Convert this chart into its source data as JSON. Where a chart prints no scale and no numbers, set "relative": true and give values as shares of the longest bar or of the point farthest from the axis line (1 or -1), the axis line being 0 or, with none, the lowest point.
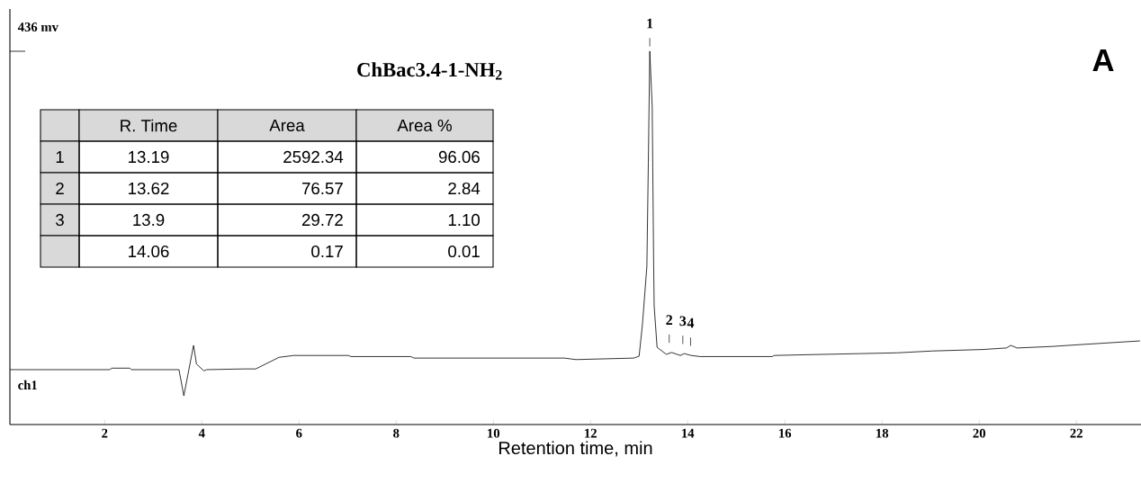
{
  "chart_data": {
    "type": "line",
    "title": "ChBac3.4-1-NH$_{2}$",
    "xlabel": "Retention time, min",
    "relative": true,
    "xlim": [
      0.05,
      23.33
    ],
    "xticks": [
      2,
      4,
      6,
      8,
      10,
      12,
      14,
      16,
      18,
      20,
      22
    ],
    "grid": false,
    "marker": "none",
    "line_style": "solid",
    "series": [
      {
        "color": "#000000",
        "x": [
          0.05,
          2.1,
          2.15,
          2.52,
          2.55,
          3.53,
          3.63,
          3.83,
          3.89,
          4.04,
          4.1,
          4.89,
          5.11,
          5.59,
          5.89,
          7.02,
          7.07,
          8.3,
          8.37,
          11.46,
          11.7,
          12.89,
          13.0,
          13.07,
          13.16,
          13.19,
          13.22,
          13.27,
          13.3,
          13.31,
          13.37,
          13.56,
          13.67,
          13.85,
          13.93,
          14.07,
          14.26,
          15.74,
          15.78,
          16.44,
          17.56,
          18.3,
          19.04,
          20.07,
          20.56,
          20.65,
          20.78,
          21.48,
          22.07,
          23.31
        ],
        "values": [
          0.147,
          0.147,
          0.151,
          0.151,
          0.147,
          0.147,
          0.077,
          0.212,
          0.162,
          0.144,
          0.147,
          0.149,
          0.149,
          0.18,
          0.185,
          0.185,
          0.182,
          0.182,
          0.178,
          0.178,
          0.174,
          0.178,
          0.183,
          0.27,
          0.424,
          0.7,
          1.0,
          0.85,
          0.424,
          0.318,
          0.207,
          0.188,
          0.193,
          0.185,
          0.19,
          0.185,
          0.182,
          0.182,
          0.185,
          0.187,
          0.19,
          0.192,
          0.197,
          0.201,
          0.205,
          0.212,
          0.205,
          0.209,
          0.214,
          0.224
        ]
      }
    ],
    "annotations": [
      "436 mv",
      "ch1",
      "A",
      null,
      "R. Time",
      "Area",
      "Area %",
      "1",
      "13.19",
      "2592.34",
      "96.06",
      "2",
      "13.62",
      "76.57",
      "2.84",
      "3",
      "13.9",
      "29.72",
      "1.10",
      null,
      "14.06",
      "0.17",
      "0.01",
      {
        "text": "1",
        "x": 13.22,
        "y": 1.0
      },
      {
        "text": "2",
        "x": 13.62,
        "y": 0.193
      },
      {
        "text": "3",
        "x": 13.9,
        "y": 0.19
      },
      {
        "text": "4",
        "x": 14.06,
        "y": 0.185
      }
    ]
  }
}
